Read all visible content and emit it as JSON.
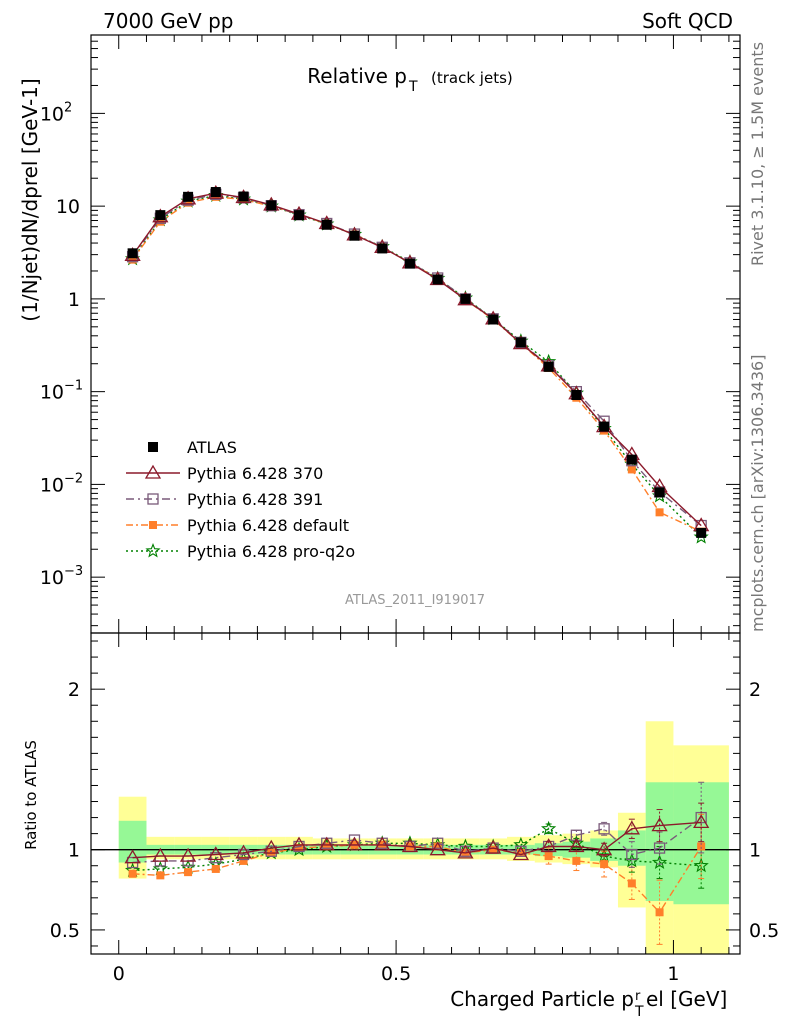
{
  "header": {
    "left": "7000 GeV pp",
    "right": "Soft QCD"
  },
  "side_labels": {
    "rivet": "Rivet 3.1.10, ≥ 1.5M events",
    "mcplots": "mcplots.cern.ch [arXiv:1306.3436]"
  },
  "analysis_id": "ATLAS_2011_I919017",
  "chart_data": [
    {
      "type": "line",
      "title": "Relative pT (track jets)",
      "title_main": "Relative p",
      "title_sub": "T",
      "title_extra": "(track jets)",
      "ylabel": "(1/Njet)dN/dprel [GeV-1]",
      "yscale": "log",
      "ylim": [
        0.00025,
        700
      ],
      "xlim": [
        -0.05,
        1.12
      ],
      "y_tick_labels": [
        "10^-3",
        "10^-2",
        "10^-1",
        "1",
        "10",
        "10^2"
      ],
      "legend_position": "center-left",
      "x": [
        0.025,
        0.075,
        0.125,
        0.175,
        0.225,
        0.275,
        0.325,
        0.375,
        0.425,
        0.475,
        0.525,
        0.575,
        0.625,
        0.675,
        0.725,
        0.775,
        0.825,
        0.875,
        0.925,
        0.975,
        1.05
      ],
      "series": [
        {
          "name": "ATLAS",
          "color": "#000000",
          "marker": "square",
          "values": [
            3.1,
            8.0,
            12.6,
            14.2,
            12.7,
            10.2,
            8.0,
            6.3,
            4.8,
            3.5,
            2.4,
            1.62,
            1.0,
            0.6,
            0.34,
            0.185,
            0.092,
            0.042,
            0.0185,
            0.0082,
            0.003
          ]
        },
        {
          "name": "Pythia 6.428 370",
          "color": "#8b1a2b",
          "marker": "triangle",
          "dash": "",
          "values": [
            2.95,
            7.7,
            12.0,
            13.8,
            12.4,
            10.3,
            8.2,
            6.5,
            4.9,
            3.6,
            2.45,
            1.62,
            0.98,
            0.61,
            0.33,
            0.19,
            0.095,
            0.042,
            0.021,
            0.0095,
            0.0036
          ]
        },
        {
          "name": "Pythia 6.428 391",
          "color": "#7a5a7a",
          "marker": "open-square",
          "dash": "8,4,2,4",
          "values": [
            2.85,
            7.4,
            11.6,
            13.4,
            12.3,
            10.1,
            8.1,
            6.5,
            5.0,
            3.6,
            2.45,
            1.68,
            1.0,
            0.61,
            0.34,
            0.19,
            0.1,
            0.048,
            0.018,
            0.0083,
            0.0036
          ]
        },
        {
          "name": "Pythia 6.428 default",
          "color": "#ff7f2a",
          "marker": "filled-square",
          "dash": "7,3,2,3",
          "values": [
            2.65,
            6.8,
            10.9,
            12.6,
            11.8,
            10.0,
            8.1,
            6.45,
            4.95,
            3.6,
            2.45,
            1.66,
            0.98,
            0.6,
            0.33,
            0.18,
            0.086,
            0.038,
            0.0145,
            0.005,
            0.0031
          ]
        },
        {
          "name": "Pythia 6.428 pro-q2o",
          "color": "#008000",
          "marker": "star",
          "dash": "2,3",
          "values": [
            2.7,
            7.1,
            11.3,
            13.0,
            11.9,
            10.0,
            8.0,
            6.4,
            4.95,
            3.65,
            2.5,
            1.66,
            1.02,
            0.61,
            0.35,
            0.21,
            0.096,
            0.04,
            0.0165,
            0.0075,
            0.0027
          ]
        }
      ]
    },
    {
      "type": "line",
      "ylabel": "Ratio to ATLAS",
      "xlabel": "Charged Particle prel [GeV]",
      "xlabel_main": "Charged Particle p",
      "xlabel_sub": "T",
      "xlabel_sup": "r",
      "xlabel_tail": "el [GeV]",
      "ylim": [
        0.35,
        2.35
      ],
      "xlim": [
        -0.05,
        1.12
      ],
      "x_ticks": [
        0,
        0.5,
        1
      ],
      "x_tick_labels": [
        "0",
        "0.5",
        "1"
      ],
      "y_ticks": [
        0.5,
        1,
        2
      ],
      "y_tick_labels": [
        "0.5",
        "1",
        "2"
      ],
      "reference_line": 1,
      "bands": {
        "bin_edges": [
          0.0,
          0.05,
          0.1,
          0.15,
          0.2,
          0.25,
          0.3,
          0.35,
          0.4,
          0.45,
          0.5,
          0.55,
          0.6,
          0.65,
          0.7,
          0.75,
          0.8,
          0.85,
          0.9,
          0.95,
          1.0,
          1.1
        ],
        "stat_sys": [
          [
            0.82,
            1.33
          ],
          [
            0.94,
            1.08
          ],
          [
            0.94,
            1.08
          ],
          [
            0.94,
            1.08
          ],
          [
            0.94,
            1.08
          ],
          [
            0.94,
            1.08
          ],
          [
            0.94,
            1.08
          ],
          [
            0.94,
            1.07
          ],
          [
            0.94,
            1.07
          ],
          [
            0.94,
            1.07
          ],
          [
            0.94,
            1.07
          ],
          [
            0.94,
            1.07
          ],
          [
            0.94,
            1.07
          ],
          [
            0.94,
            1.07
          ],
          [
            0.93,
            1.08
          ],
          [
            0.92,
            1.09
          ],
          [
            0.91,
            1.1
          ],
          [
            0.89,
            1.12
          ],
          [
            0.64,
            1.23
          ],
          [
            0.35,
            1.8
          ],
          [
            0.35,
            1.65
          ]
        ],
        "stat": [
          [
            0.92,
            1.18
          ],
          [
            0.97,
            1.03
          ],
          [
            0.97,
            1.03
          ],
          [
            0.97,
            1.03
          ],
          [
            0.97,
            1.03
          ],
          [
            0.97,
            1.03
          ],
          [
            0.97,
            1.03
          ],
          [
            0.97,
            1.03
          ],
          [
            0.97,
            1.03
          ],
          [
            0.97,
            1.03
          ],
          [
            0.97,
            1.03
          ],
          [
            0.97,
            1.03
          ],
          [
            0.97,
            1.03
          ],
          [
            0.97,
            1.03
          ],
          [
            0.97,
            1.03
          ],
          [
            0.96,
            1.04
          ],
          [
            0.95,
            1.05
          ],
          [
            0.93,
            1.07
          ],
          [
            0.9,
            1.12
          ],
          [
            0.68,
            1.42
          ],
          [
            0.66,
            1.42
          ]
        ]
      },
      "series": [
        {
          "name": "Pythia 6.428 370",
          "values": [
            0.95,
            0.96,
            0.96,
            0.97,
            0.98,
            1.01,
            1.03,
            1.03,
            1.03,
            1.03,
            1.02,
            1.0,
            0.98,
            1.01,
            0.97,
            1.02,
            1.02,
            1.0,
            1.13,
            1.15,
            1.17
          ]
        },
        {
          "name": "Pythia 6.428 391",
          "values": [
            0.92,
            0.93,
            0.93,
            0.95,
            0.97,
            0.99,
            1.02,
            1.04,
            1.06,
            1.04,
            1.02,
            1.04,
            0.99,
            1.01,
            0.99,
            1.02,
            1.09,
            1.13,
            0.97,
            1.01,
            1.2
          ]
        },
        {
          "name": "Pythia 6.428 default",
          "values": [
            0.85,
            0.84,
            0.86,
            0.88,
            0.93,
            0.98,
            1.01,
            1.02,
            1.03,
            1.03,
            1.02,
            1.02,
            0.98,
            1.0,
            0.98,
            0.96,
            0.93,
            0.91,
            0.79,
            0.61,
            1.02
          ]
        },
        {
          "name": "Pythia 6.428 pro-q2o",
          "values": [
            0.87,
            0.88,
            0.89,
            0.91,
            0.94,
            0.98,
            1.0,
            1.02,
            1.03,
            1.04,
            1.04,
            1.03,
            1.02,
            1.02,
            1.03,
            1.13,
            1.04,
            0.96,
            0.93,
            0.92,
            0.9
          ]
        }
      ],
      "error_bars": {
        "Pythia 6.428 default": [
          0,
          0,
          0,
          0,
          0,
          0,
          0,
          0,
          0,
          0,
          0,
          0,
          0,
          0,
          0,
          0.05,
          0.06,
          0.08,
          0.1,
          0.2,
          0.2
        ],
        "Pythia 6.428 391": [
          0,
          0,
          0,
          0,
          0,
          0,
          0,
          0,
          0,
          0,
          0,
          0,
          0,
          0,
          0,
          0.03,
          0.03,
          0.04,
          0.08,
          0.1,
          0.22
        ],
        "Pythia 6.428 370": [
          0,
          0,
          0,
          0,
          0,
          0,
          0,
          0,
          0,
          0,
          0,
          0,
          0,
          0,
          0,
          0.03,
          0.03,
          0.04,
          0.06,
          0.1,
          0.12
        ],
        "Pythia 6.428 pro-q2o": [
          0,
          0,
          0,
          0,
          0,
          0,
          0,
          0,
          0,
          0,
          0,
          0,
          0,
          0,
          0,
          0.03,
          0.03,
          0.04,
          0.07,
          0.1,
          0.14
        ]
      }
    }
  ]
}
